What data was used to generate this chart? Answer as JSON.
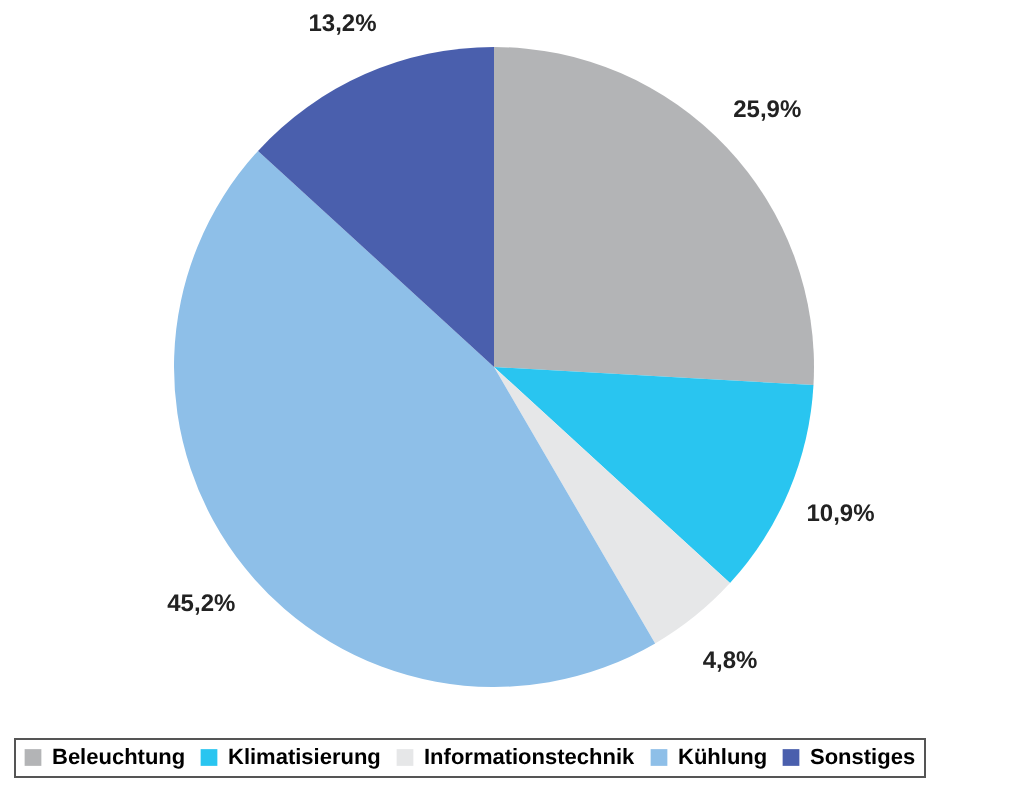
{
  "chart_data": {
    "type": "pie",
    "categories": [
      "Beleuchtung",
      "Klimatisierung",
      "Informationstechnik",
      "Kühlung",
      "Sonstiges"
    ],
    "values": [
      25.9,
      10.9,
      4.8,
      45.2,
      13.2
    ],
    "colors": [
      "#b3b4b6",
      "#29c5f0",
      "#e6e7e8",
      "#8ebfe8",
      "#4a5fad"
    ],
    "value_labels": [
      "25,9%",
      "10,9%",
      "4,8%",
      "45,2%",
      "13,2%"
    ],
    "legend": "bottom"
  }
}
